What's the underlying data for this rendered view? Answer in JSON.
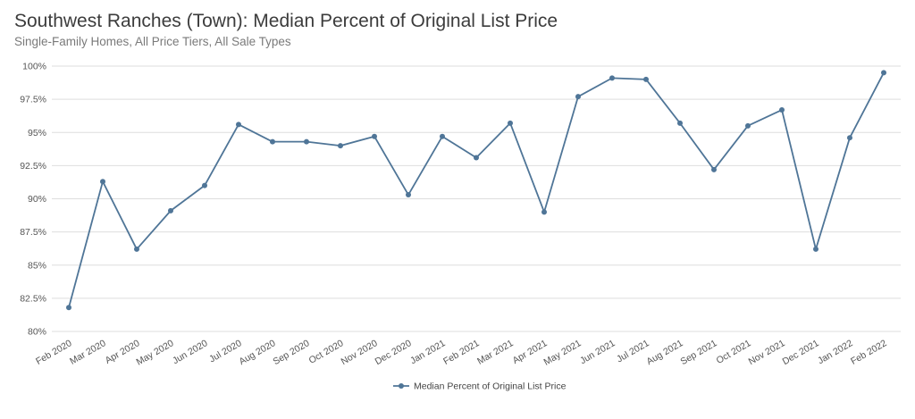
{
  "header": {
    "title": "Southwest Ranches (Town): Median Percent of Original List Price",
    "subtitle": "Single-Family Homes, All Price Tiers, All Sale Types"
  },
  "chart_data": {
    "type": "line",
    "categories": [
      "Feb 2020",
      "Mar 2020",
      "Apr 2020",
      "May 2020",
      "Jun 2020",
      "Jul 2020",
      "Aug 2020",
      "Sep 2020",
      "Oct 2020",
      "Nov 2020",
      "Dec 2020",
      "Jan 2021",
      "Feb 2021",
      "Mar 2021",
      "Apr 2021",
      "May 2021",
      "Jun 2021",
      "Jul 2021",
      "Aug 2021",
      "Sep 2021",
      "Oct 2021",
      "Nov 2021",
      "Dec 2021",
      "Jan 2022",
      "Feb 2022"
    ],
    "series": [
      {
        "name": "Median Percent of Original List Price",
        "color": "#4f7597",
        "values": [
          81.8,
          91.3,
          86.2,
          89.1,
          91.0,
          95.6,
          94.3,
          94.3,
          94.0,
          94.7,
          90.3,
          94.7,
          93.1,
          95.7,
          89.0,
          97.7,
          99.1,
          99.0,
          95.7,
          92.2,
          95.5,
          96.7,
          86.2,
          94.6,
          99.5
        ]
      }
    ],
    "ylim": [
      80,
      100
    ],
    "yticks": [
      {
        "value": 80,
        "label": "80%"
      },
      {
        "value": 82.5,
        "label": "82.5%"
      },
      {
        "value": 85,
        "label": "85%"
      },
      {
        "value": 87.5,
        "label": "87.5%"
      },
      {
        "value": 90,
        "label": "90%"
      },
      {
        "value": 92.5,
        "label": "92.5%"
      },
      {
        "value": 95,
        "label": "95%"
      },
      {
        "value": 97.5,
        "label": "97.5%"
      },
      {
        "value": 100,
        "label": "100%"
      }
    ],
    "grid": true,
    "legend_position": "bottom-center"
  }
}
